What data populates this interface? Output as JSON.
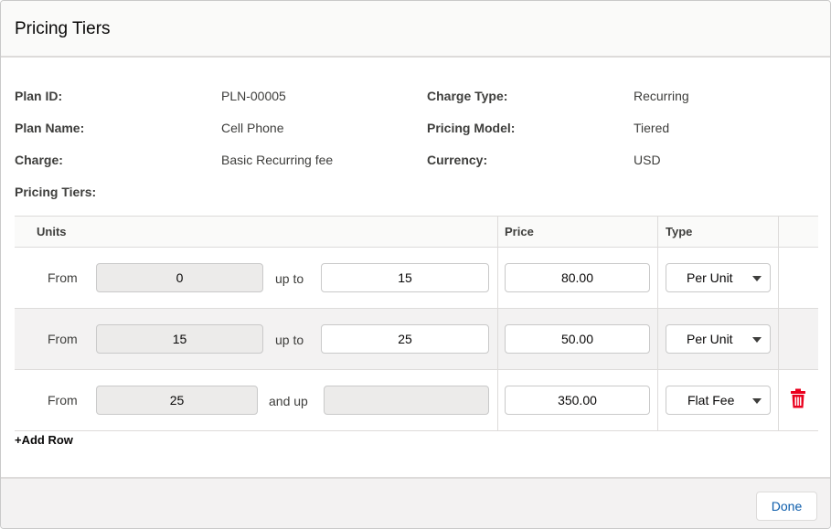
{
  "modal": {
    "title": "Pricing Tiers"
  },
  "fields": {
    "plan_id_label": "Plan ID:",
    "plan_id_value": "PLN-00005",
    "plan_name_label": "Plan Name:",
    "plan_name_value": "Cell Phone",
    "charge_label": "Charge:",
    "charge_value": "Basic Recurring fee",
    "charge_type_label": "Charge Type:",
    "charge_type_value": "Recurring",
    "pricing_model_label": "Pricing Model:",
    "pricing_model_value": "Tiered",
    "currency_label": "Currency:",
    "currency_value": "USD",
    "pricing_tiers_label": "Pricing Tiers:"
  },
  "table": {
    "headers": {
      "units": "Units",
      "price": "Price",
      "type": "Type"
    },
    "rows": [
      {
        "from_label": "From",
        "from": "0",
        "connector": "up to",
        "to": "15",
        "price": "80.00",
        "type": "Per Unit"
      },
      {
        "from_label": "From",
        "from": "15",
        "connector": "up to",
        "to": "25",
        "price": "50.00",
        "type": "Per Unit"
      },
      {
        "from_label": "From",
        "from": "25",
        "connector": "and up",
        "to": "",
        "price": "350.00",
        "type": "Flat Fee"
      }
    ]
  },
  "add_row_label": "+Add Row",
  "footer": {
    "done_label": "Done"
  },
  "colors": {
    "accent": "#0b5cab",
    "delete": "#ea001e",
    "header_bg": "#fafaf9",
    "alt_row": "#f3f2f2"
  },
  "icons": {
    "delete": "trash-icon",
    "dropdown": "chevron-down-icon"
  }
}
